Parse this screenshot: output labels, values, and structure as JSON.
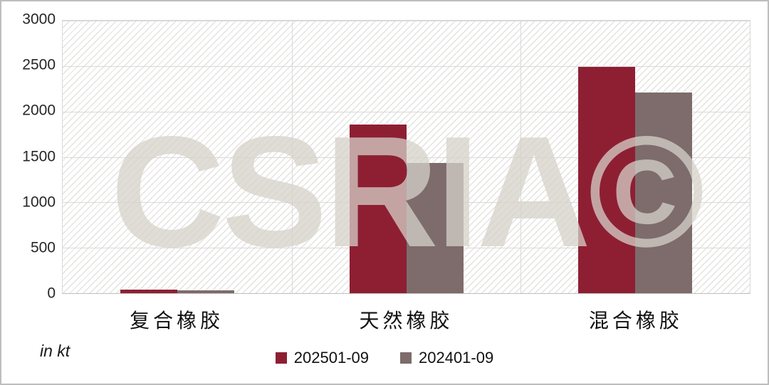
{
  "chart_data": {
    "type": "bar",
    "title": "",
    "categories": [
      "复合橡胶",
      "天然橡胶",
      "混合橡胶"
    ],
    "series": [
      {
        "name": "202501-09",
        "color": "#8E1F33",
        "values": [
          40,
          1860,
          2490
        ]
      },
      {
        "name": "202401-09",
        "color": "#7D6C6B",
        "values": [
          35,
          1430,
          2210
        ]
      }
    ],
    "xlabel": "",
    "ylabel": "",
    "unit_label": "in kt",
    "ylim": [
      0,
      3000
    ],
    "yticks": [
      0,
      500,
      1000,
      1500,
      2000,
      2500,
      3000
    ],
    "legend_position": "bottom",
    "grid": {
      "horizontal": true,
      "vertical_band_separators": true
    },
    "background_pattern": "light-downward-diagonal-hatch",
    "watermark": "CSRIA©",
    "colors": {
      "gridline": "#D9D9D9",
      "axis_line": "#BFBFBF",
      "watermark": "#D5D1C9",
      "tick_text": "#262626",
      "label_text": "#111111"
    }
  }
}
